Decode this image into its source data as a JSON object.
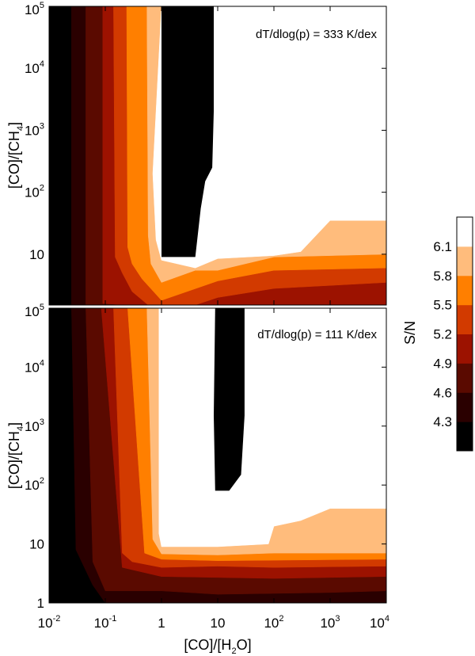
{
  "chart_data": {
    "type": "contour",
    "colorbar": {
      "label": "S/N",
      "ticks": [
        "6.1",
        "5.8",
        "5.5",
        "5.2",
        "4.9",
        "4.6",
        "4.3"
      ],
      "levels": [
        {
          "min": null,
          "max": 4.3,
          "color": "#000000"
        },
        {
          "min": 4.3,
          "max": 4.6,
          "color": "#2a0000"
        },
        {
          "min": 4.6,
          "max": 4.9,
          "color": "#5a0a00"
        },
        {
          "min": 4.9,
          "max": 5.2,
          "color": "#9c1200"
        },
        {
          "min": 5.2,
          "max": 5.5,
          "color": "#d23a00"
        },
        {
          "min": 5.5,
          "max": 5.8,
          "color": "#ff7f00"
        },
        {
          "min": 5.8,
          "max": 6.1,
          "color": "#ffbc7c"
        },
        {
          "min": 6.1,
          "max": null,
          "color": "#ffffff"
        }
      ]
    },
    "x_axis": {
      "label_parts": [
        "[CO]/[H",
        "2",
        "O]"
      ],
      "scale": "log",
      "range": [
        0.01,
        10000
      ],
      "ticks": [
        {
          "value": 0.01,
          "base": "10",
          "exp": "-2"
        },
        {
          "value": 0.1,
          "base": "10",
          "exp": "-1"
        },
        {
          "value": 1,
          "base": "1",
          "exp": ""
        },
        {
          "value": 10,
          "base": "10",
          "exp": ""
        },
        {
          "value": 100,
          "base": "10",
          "exp": "2"
        },
        {
          "value": 1000,
          "base": "10",
          "exp": "3"
        },
        {
          "value": 10000,
          "base": "10",
          "exp": "4"
        }
      ]
    },
    "panels": [
      {
        "annotation": "dT/dlog(p) = 333 K/dex",
        "y_label_parts": [
          "[CO]/[CH",
          "4",
          "]"
        ],
        "y_scale": "log",
        "y_range": [
          1,
          100000
        ],
        "y_ticks": [
          {
            "value": 100000,
            "base": "10",
            "exp": "5"
          },
          {
            "value": 10000,
            "base": "10",
            "exp": "4"
          },
          {
            "value": 1000,
            "base": "10",
            "exp": "3"
          },
          {
            "value": 100,
            "base": "10",
            "exp": "2"
          },
          {
            "value": 10,
            "base": "10",
            "exp": ""
          }
        ],
        "regions": [
          {
            "level": 1,
            "pts": [
              [
                0.025,
                100000
              ],
              [
                10000,
                100000
              ],
              [
                10000,
                1
              ],
              [
                0.025,
                1
              ]
            ]
          },
          {
            "level": 2,
            "pts": [
              [
                0.045,
                100000
              ],
              [
                10000,
                100000
              ],
              [
                10000,
                1
              ],
              [
                0.045,
                1
              ]
            ]
          },
          {
            "level": 3,
            "pts": [
              [
                0.09,
                100000
              ],
              [
                10000,
                100000
              ],
              [
                10000,
                1.4
              ],
              [
                1,
                1.4
              ],
              [
                0.09,
                1.6
              ]
            ]
          },
          {
            "level": 4,
            "pts": [
              [
                0.14,
                100000
              ],
              [
                10000,
                100000
              ],
              [
                10000,
                3.5
              ],
              [
                100,
                2.8
              ],
              [
                10,
                2
              ],
              [
                1,
                1
              ],
              [
                0.3,
                2.5
              ],
              [
                0.2,
                5
              ],
              [
                0.15,
                9
              ]
            ]
          },
          {
            "level": 5,
            "pts": [
              [
                0.24,
                100000
              ],
              [
                10000,
                100000
              ],
              [
                10000,
                6
              ],
              [
                100,
                5.5
              ],
              [
                10,
                3.7
              ],
              [
                1,
                1.8
              ],
              [
                0.45,
                4
              ],
              [
                0.3,
                7
              ],
              [
                0.25,
                13
              ]
            ]
          },
          {
            "level": 6,
            "pts": [
              [
                0.55,
                100000
              ],
              [
                10000,
                100000
              ],
              [
                10000,
                10
              ],
              [
                100,
                9
              ],
              [
                10,
                5.5
              ],
              [
                4,
                5.5
              ],
              [
                1,
                3.5
              ],
              [
                0.65,
                7
              ],
              [
                0.58,
                20
              ]
            ]
          },
          {
            "level": 7,
            "pts": [
              [
                1,
                100000
              ],
              [
                10000,
                100000
              ],
              [
                10000,
                35
              ],
              [
                1000,
                35
              ],
              [
                300,
                11
              ],
              [
                100,
                9.5
              ],
              [
                10,
                8.5
              ],
              [
                4,
                6
              ],
              [
                1,
                8
              ],
              [
                0.8,
                17
              ],
              [
                0.7,
                200
              ]
            ]
          },
          {
            "level": 8,
            "pts": [
              [
                1,
                100000
              ],
              [
                8.5,
                100000
              ],
              [
                8.5,
                2000
              ],
              [
                8,
                250
              ],
              [
                6,
                150
              ],
              [
                5,
                55
              ],
              [
                4,
                9
              ],
              [
                1,
                9
              ]
            ]
          }
        ]
      },
      {
        "annotation": "dT/dlog(p) = 111 K/dex",
        "y_label_parts": [
          "[CO]/[CH",
          "4",
          "]"
        ],
        "y_scale": "log",
        "y_range": [
          1,
          100000
        ],
        "y_ticks": [
          {
            "value": 100000,
            "base": "10",
            "exp": "5"
          },
          {
            "value": 10000,
            "base": "10",
            "exp": "4"
          },
          {
            "value": 1000,
            "base": "10",
            "exp": "3"
          },
          {
            "value": 100,
            "base": "10",
            "exp": "2"
          },
          {
            "value": 10,
            "base": "10",
            "exp": ""
          },
          {
            "value": 1,
            "base": "1",
            "exp": ""
          }
        ],
        "regions": [
          {
            "level": 1,
            "pts": [
              [
                0.025,
                100000
              ],
              [
                10000,
                100000
              ],
              [
                10000,
                1
              ],
              [
                0.1,
                1
              ],
              [
                0.06,
                2
              ],
              [
                0.03,
                8
              ]
            ]
          },
          {
            "level": 2,
            "pts": [
              [
                0.045,
                100000
              ],
              [
                10000,
                100000
              ],
              [
                10000,
                1.6
              ],
              [
                1000,
                1.5
              ],
              [
                10,
                1.4
              ],
              [
                1,
                1.6
              ],
              [
                0.1,
                1.6
              ],
              [
                0.06,
                5
              ]
            ]
          },
          {
            "level": 3,
            "pts": [
              [
                0.085,
                100000
              ],
              [
                10000,
                100000
              ],
              [
                10000,
                2.8
              ],
              [
                100,
                2.6
              ],
              [
                1,
                2.8
              ],
              [
                0.2,
                4
              ]
            ]
          },
          {
            "level": 4,
            "pts": [
              [
                0.14,
                100000
              ],
              [
                10000,
                100000
              ],
              [
                10000,
                4.2
              ],
              [
                100,
                4
              ],
              [
                10,
                4.2
              ],
              [
                1,
                4
              ],
              [
                0.3,
                5
              ],
              [
                0.2,
                7
              ]
            ]
          },
          {
            "level": 5,
            "pts": [
              [
                0.25,
                100000
              ],
              [
                10000,
                100000
              ],
              [
                10000,
                5.5
              ],
              [
                100,
                5.3
              ],
              [
                10,
                5.2
              ],
              [
                1,
                5.5
              ],
              [
                0.5,
                7
              ]
            ]
          },
          {
            "level": 6,
            "pts": [
              [
                0.55,
                100000
              ],
              [
                10000,
                100000
              ],
              [
                10000,
                7
              ],
              [
                100,
                7
              ],
              [
                10,
                6.5
              ],
              [
                1,
                6.8
              ],
              [
                0.7,
                12
              ]
            ]
          },
          {
            "level": 7,
            "pts": [
              [
                0.9,
                100000
              ],
              [
                10000,
                100000
              ],
              [
                10000,
                40
              ],
              [
                1000,
                40
              ],
              [
                300,
                25
              ],
              [
                100,
                20
              ],
              [
                80,
                10
              ],
              [
                10,
                9
              ],
              [
                1,
                9
              ],
              [
                0.9,
                15
              ]
            ]
          },
          {
            "level": 8,
            "pts": [
              [
                9,
                100000
              ],
              [
                30,
                100000
              ],
              [
                30,
                1500
              ],
              [
                26,
                150
              ],
              [
                16,
                80
              ],
              [
                9,
                80
              ],
              [
                8.5,
                1500
              ]
            ]
          }
        ]
      }
    ]
  }
}
